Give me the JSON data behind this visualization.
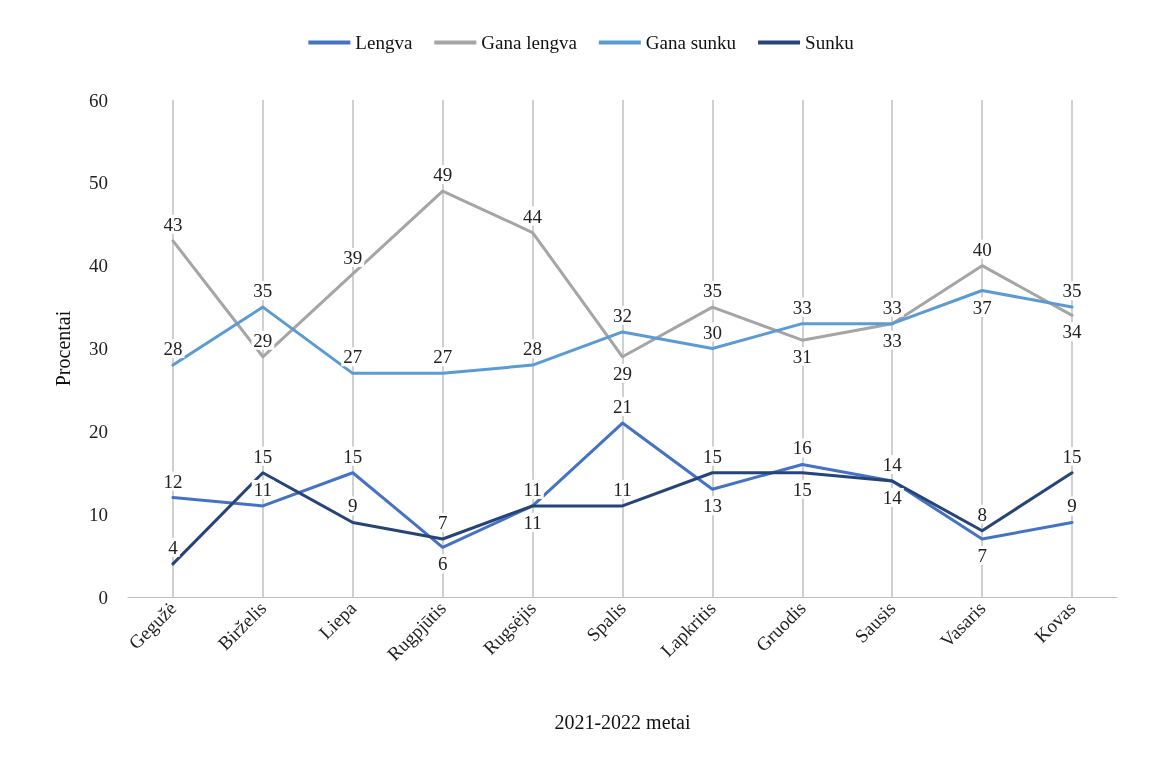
{
  "chart_data": {
    "type": "line",
    "xlabel": "2021-2022 metai",
    "ylabel": "Procentai",
    "categories": [
      "Gegužė",
      "Birželis",
      "Liepa",
      "Rugpjūtis",
      "Rugsėjis",
      "Spalis",
      "Lapkritis",
      "Gruodis",
      "Sausis",
      "Vasaris",
      "Kovas"
    ],
    "series": [
      {
        "name": "Lengva",
        "color": "#4472c4",
        "values": [
          12,
          11,
          15,
          6,
          11,
          21,
          13,
          16,
          14,
          7,
          9
        ]
      },
      {
        "name": "Gana lengva",
        "color": "#a5a5a5",
        "values": [
          43,
          29,
          39,
          49,
          44,
          29,
          35,
          31,
          33,
          40,
          34
        ]
      },
      {
        "name": "Gana sunku",
        "color": "#5b9bd5",
        "values": [
          28,
          35,
          27,
          27,
          28,
          32,
          30,
          33,
          33,
          37,
          35
        ]
      },
      {
        "name": "Sunku",
        "color": "#264478",
        "values": [
          4,
          15,
          9,
          7,
          11,
          11,
          15,
          15,
          14,
          8,
          15
        ]
      }
    ],
    "ylim": [
      0,
      60
    ],
    "yticks": [
      0,
      10,
      20,
      30,
      40,
      50,
      60
    ],
    "grid": "x",
    "legend": "top",
    "data_labels": true,
    "marker": "none",
    "line_style": "solid"
  }
}
